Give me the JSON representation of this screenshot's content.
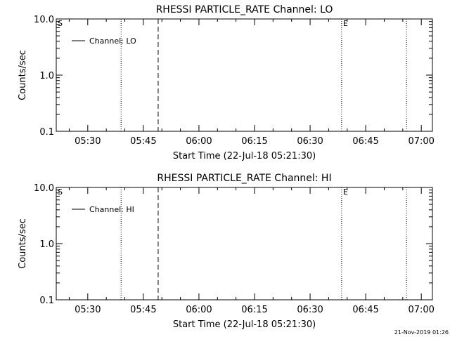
{
  "colors": {
    "background": "#ffffff",
    "foreground": "#000000"
  },
  "footer": {
    "timestamp": "21-Nov-2019 01:26"
  },
  "chart_data": [
    {
      "type": "line",
      "title": "RHESSI PARTICLE_RATE Channel: LO",
      "xlabel": "Start Time (22-Jul-18 05:21:30)",
      "ylabel": "Counts/sec",
      "y_scale": "log",
      "ylim": [
        0.1,
        10.0
      ],
      "y_ticks": [
        "0.1",
        "1.0",
        "10.0"
      ],
      "xlim": [
        "05:21:30",
        "07:03:00"
      ],
      "x_ticks": [
        "05:30",
        "05:45",
        "06:00",
        "06:15",
        "06:30",
        "06:45",
        "07:00"
      ],
      "legend": {
        "position": "top-left",
        "entries": [
          "Channel: LO"
        ]
      },
      "series": [
        {
          "name": "Channel: LO",
          "values": []
        }
      ],
      "markers": [
        {
          "label": "S",
          "time": "05:21:30",
          "style": "none"
        },
        {
          "label": "",
          "time": "05:39:00",
          "style": "dotted"
        },
        {
          "label": "",
          "time": "05:49:00",
          "style": "dashed"
        },
        {
          "label": "E",
          "time": "06:38:30",
          "style": "dotted"
        },
        {
          "label": "",
          "time": "06:56:00",
          "style": "dotted"
        }
      ],
      "grid": false
    },
    {
      "type": "line",
      "title": "RHESSI PARTICLE_RATE Channel: HI",
      "xlabel": "Start Time (22-Jul-18 05:21:30)",
      "ylabel": "Counts/sec",
      "y_scale": "log",
      "ylim": [
        0.1,
        10.0
      ],
      "y_ticks": [
        "0.1",
        "1.0",
        "10.0"
      ],
      "xlim": [
        "05:21:30",
        "07:03:00"
      ],
      "x_ticks": [
        "05:30",
        "05:45",
        "06:00",
        "06:15",
        "06:30",
        "06:45",
        "07:00"
      ],
      "legend": {
        "position": "top-left",
        "entries": [
          "Channel: HI"
        ]
      },
      "series": [
        {
          "name": "Channel: HI",
          "values": []
        }
      ],
      "markers": [
        {
          "label": "S",
          "time": "05:21:30",
          "style": "none"
        },
        {
          "label": "",
          "time": "05:39:00",
          "style": "dotted"
        },
        {
          "label": "",
          "time": "05:49:00",
          "style": "dashed"
        },
        {
          "label": "E",
          "time": "06:38:30",
          "style": "dotted"
        },
        {
          "label": "",
          "time": "06:56:00",
          "style": "dotted"
        }
      ],
      "grid": false
    }
  ]
}
